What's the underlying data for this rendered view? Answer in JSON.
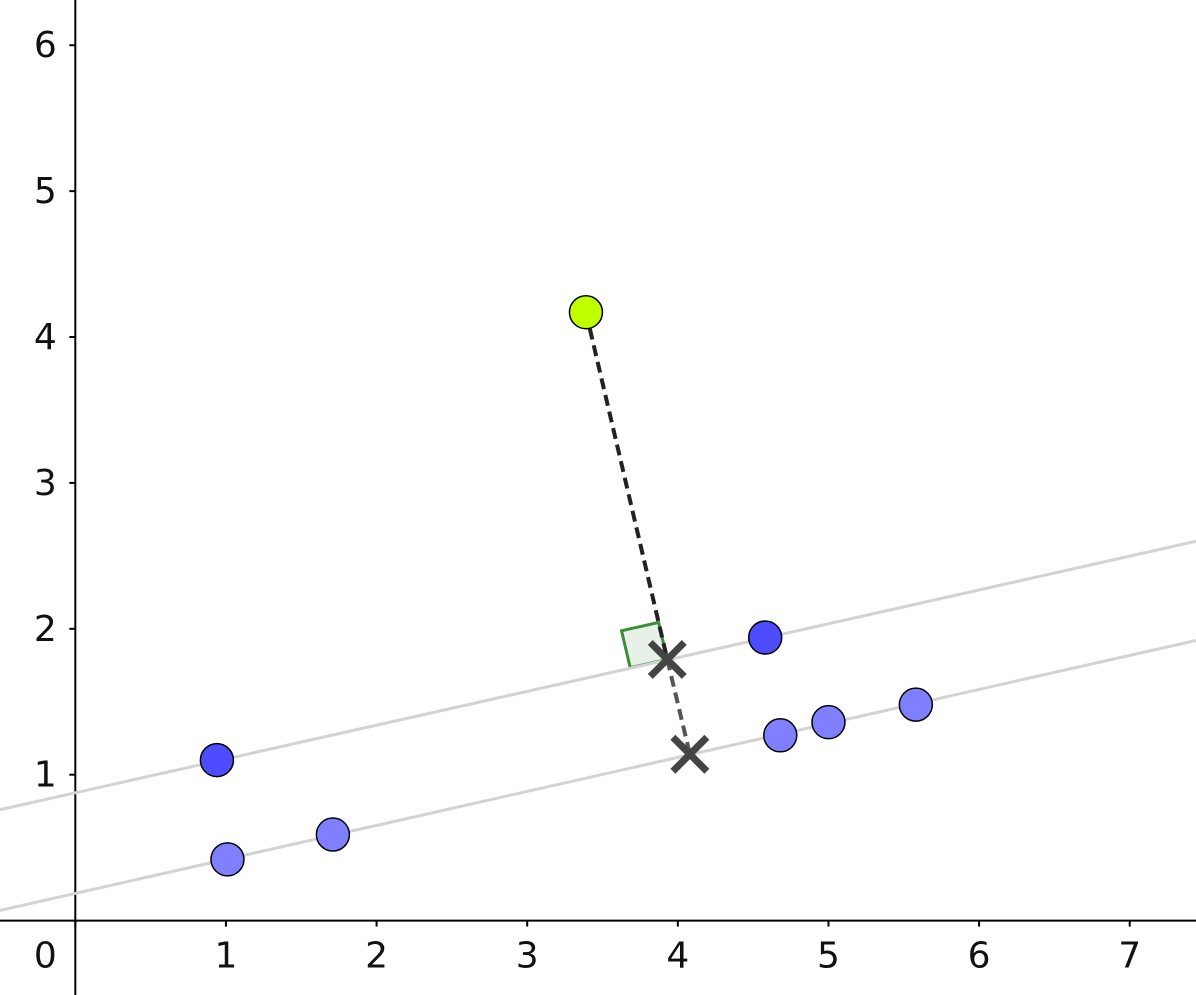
{
  "chart_data": {
    "type": "scatter",
    "xlim": [
      -0.5,
      7.44
    ],
    "ylim": [
      -0.51,
      6.31
    ],
    "xticks": [
      0,
      1,
      2,
      3,
      4,
      5,
      6,
      7
    ],
    "yticks": [
      1,
      2,
      3,
      4,
      5,
      6
    ],
    "series": [
      {
        "style": "line",
        "color": "#d3d3d3",
        "x": [
          -0.5,
          7.44
        ],
        "values": [
          0.76,
          2.6
        ]
      },
      {
        "style": "line",
        "color": "#d3d3d3",
        "x": [
          -0.5,
          7.44
        ],
        "values": [
          0.07,
          1.92
        ]
      },
      {
        "style": "dashed",
        "color": "#222222",
        "x": [
          3.39,
          3.93
        ],
        "values": [
          4.17,
          1.79
        ]
      },
      {
        "style": "dashed",
        "color": "#555555",
        "x": [
          3.93,
          4.08
        ],
        "values": [
          1.79,
          1.14
        ]
      },
      {
        "style": "circle",
        "color": "#4d4dff",
        "x": [
          0.94,
          4.58
        ],
        "values": [
          1.1,
          1.94
        ]
      },
      {
        "style": "circle",
        "color": "#7f7fff",
        "x": [
          1.01,
          1.71,
          4.68,
          5.0,
          5.58
        ],
        "values": [
          0.42,
          0.59,
          1.27,
          1.36,
          1.48
        ]
      },
      {
        "style": "circle",
        "color": "#bfff00",
        "x": [
          3.39
        ],
        "values": [
          4.17
        ]
      },
      {
        "style": "cross",
        "color": "#444444",
        "x": [
          3.93,
          4.08
        ],
        "values": [
          1.79,
          1.14
        ]
      }
    ]
  }
}
